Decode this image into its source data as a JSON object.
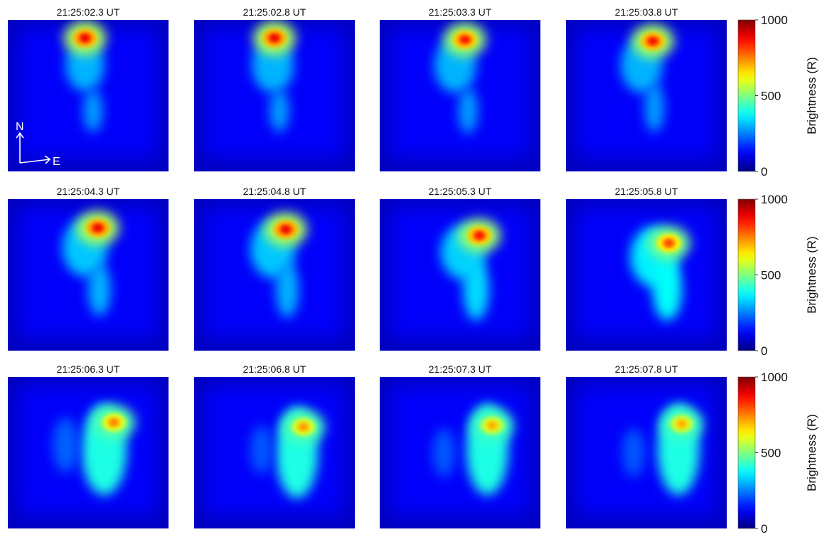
{
  "chart_data": {
    "type": "heatmap",
    "layout": "3x4 panel grid",
    "colormap": "jet",
    "colorbar": {
      "label": "Brightness (R)",
      "ticks": [
        0,
        500,
        1000
      ],
      "range": [
        0,
        1000
      ]
    },
    "compass": {
      "north": "N",
      "east": "E"
    },
    "units": "R",
    "panels": [
      {
        "time": "21:25:02.3 UT",
        "peak_brightness": 900,
        "peak": [
          0.48,
          0.12
        ],
        "features": [
          {
            "cx": 0.48,
            "cy": 0.3,
            "rx": 0.12,
            "ry": 0.17,
            "value": 300
          },
          {
            "cx": 0.53,
            "cy": 0.6,
            "rx": 0.06,
            "ry": 0.14,
            "value": 280
          }
        ]
      },
      {
        "time": "21:25:02.8 UT",
        "peak_brightness": 900,
        "peak": [
          0.5,
          0.12
        ],
        "features": [
          {
            "cx": 0.49,
            "cy": 0.3,
            "rx": 0.13,
            "ry": 0.18,
            "value": 300
          },
          {
            "cx": 0.53,
            "cy": 0.6,
            "rx": 0.06,
            "ry": 0.14,
            "value": 280
          }
        ]
      },
      {
        "time": "21:25:03.3 UT",
        "peak_brightness": 870,
        "peak": [
          0.53,
          0.13
        ],
        "features": [
          {
            "cx": 0.47,
            "cy": 0.3,
            "rx": 0.13,
            "ry": 0.18,
            "value": 300
          },
          {
            "cx": 0.55,
            "cy": 0.6,
            "rx": 0.06,
            "ry": 0.15,
            "value": 280
          }
        ]
      },
      {
        "time": "21:25:03.8 UT",
        "peak_brightness": 880,
        "peak": [
          0.54,
          0.14
        ],
        "features": [
          {
            "cx": 0.47,
            "cy": 0.3,
            "rx": 0.13,
            "ry": 0.18,
            "value": 300
          },
          {
            "cx": 0.55,
            "cy": 0.58,
            "rx": 0.06,
            "ry": 0.16,
            "value": 280
          }
        ]
      },
      {
        "time": "21:25:04.3 UT",
        "peak_brightness": 900,
        "peak": [
          0.56,
          0.19
        ],
        "features": [
          {
            "cx": 0.48,
            "cy": 0.32,
            "rx": 0.14,
            "ry": 0.19,
            "value": 320
          },
          {
            "cx": 0.57,
            "cy": 0.6,
            "rx": 0.07,
            "ry": 0.17,
            "value": 300
          }
        ]
      },
      {
        "time": "21:25:04.8 UT",
        "peak_brightness": 900,
        "peak": [
          0.57,
          0.2
        ],
        "features": [
          {
            "cx": 0.49,
            "cy": 0.33,
            "rx": 0.14,
            "ry": 0.19,
            "value": 320
          },
          {
            "cx": 0.58,
            "cy": 0.6,
            "rx": 0.07,
            "ry": 0.18,
            "value": 300
          }
        ]
      },
      {
        "time": "21:25:05.3 UT",
        "peak_brightness": 870,
        "peak": [
          0.62,
          0.24
        ],
        "features": [
          {
            "cx": 0.52,
            "cy": 0.35,
            "rx": 0.14,
            "ry": 0.18,
            "value": 330
          },
          {
            "cx": 0.6,
            "cy": 0.6,
            "rx": 0.08,
            "ry": 0.2,
            "value": 340
          }
        ]
      },
      {
        "time": "21:25:05.8 UT",
        "peak_brightness": 820,
        "peak": [
          0.64,
          0.29
        ],
        "features": [
          {
            "cx": 0.55,
            "cy": 0.38,
            "rx": 0.15,
            "ry": 0.2,
            "value": 360
          },
          {
            "cx": 0.63,
            "cy": 0.6,
            "rx": 0.09,
            "ry": 0.2,
            "value": 380
          }
        ]
      },
      {
        "time": "21:25:06.3 UT",
        "peak_brightness": 760,
        "peak": [
          0.66,
          0.3
        ],
        "features": [
          {
            "cx": 0.6,
            "cy": 0.48,
            "rx": 0.14,
            "ry": 0.3,
            "value": 400
          },
          {
            "cx": 0.36,
            "cy": 0.45,
            "rx": 0.08,
            "ry": 0.18,
            "value": 220
          }
        ]
      },
      {
        "time": "21:25:06.8 UT",
        "peak_brightness": 740,
        "peak": [
          0.68,
          0.33
        ],
        "features": [
          {
            "cx": 0.64,
            "cy": 0.5,
            "rx": 0.13,
            "ry": 0.3,
            "value": 400
          },
          {
            "cx": 0.42,
            "cy": 0.48,
            "rx": 0.07,
            "ry": 0.16,
            "value": 210
          }
        ]
      },
      {
        "time": "21:25:07.3 UT",
        "peak_brightness": 720,
        "peak": [
          0.7,
          0.32
        ],
        "features": [
          {
            "cx": 0.67,
            "cy": 0.48,
            "rx": 0.13,
            "ry": 0.3,
            "value": 400
          },
          {
            "cx": 0.4,
            "cy": 0.5,
            "rx": 0.07,
            "ry": 0.16,
            "value": 210
          }
        ]
      },
      {
        "time": "21:25:07.8 UT",
        "peak_brightness": 720,
        "peak": [
          0.72,
          0.31
        ],
        "features": [
          {
            "cx": 0.7,
            "cy": 0.48,
            "rx": 0.13,
            "ry": 0.3,
            "value": 400
          },
          {
            "cx": 0.42,
            "cy": 0.5,
            "rx": 0.07,
            "ry": 0.16,
            "value": 210
          }
        ]
      }
    ]
  }
}
